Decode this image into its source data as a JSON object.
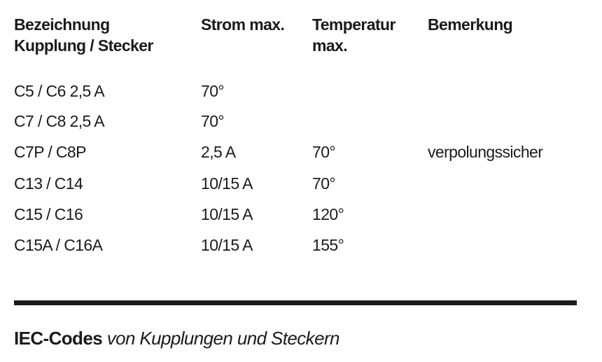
{
  "table": {
    "headers": [
      [
        "Bezeichnung",
        "Kupplung / Stecker"
      ],
      [
        "Strom max."
      ],
      [
        "Temperatur",
        "max."
      ],
      [
        "Bemerkung"
      ]
    ],
    "rows": [
      [
        "C5 / C6  2,5 A",
        "70°",
        "",
        ""
      ],
      [
        "C7 / C8  2,5 A",
        "70°",
        "",
        ""
      ],
      [
        "C7P / C8P",
        "2,5 A",
        "70°",
        "verpolungssicher"
      ],
      [
        "C13 / C14",
        "10/15 A",
        "70°",
        ""
      ],
      [
        "C15 / C16",
        "10/15 A",
        "120°",
        ""
      ],
      [
        "C15A / C16A",
        "10/15 A",
        "155°",
        ""
      ]
    ]
  },
  "caption": {
    "bold": "IEC-Codes",
    "italic": "von Kupplungen und Steckern"
  }
}
